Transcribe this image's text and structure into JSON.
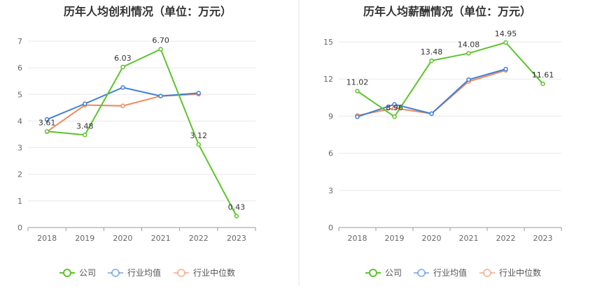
{
  "chart_data": [
    {
      "type": "line",
      "title": "历年人均创利情况（单位：万元）",
      "categories": [
        "2018",
        "2019",
        "2020",
        "2021",
        "2022",
        "2023"
      ],
      "ylim": [
        0,
        7
      ],
      "yticks": [
        0,
        1,
        2,
        3,
        4,
        5,
        6,
        7
      ],
      "grid": true,
      "legend": "bottom",
      "series": [
        {
          "name": "公司",
          "color": "#5cc42b",
          "values": [
            3.61,
            3.48,
            6.03,
            6.7,
            3.12,
            0.43
          ],
          "show_labels": true
        },
        {
          "name": "行业均值",
          "color": "#3f7fd6",
          "values": [
            4.06,
            4.65,
            5.26,
            4.94,
            5.05,
            null
          ],
          "show_labels": false
        },
        {
          "name": "行业中位数",
          "color": "#ef8a5b",
          "values": [
            3.6,
            4.6,
            4.57,
            4.94,
            5.01,
            null
          ],
          "show_labels": false
        }
      ]
    },
    {
      "type": "line",
      "title": "历年人均薪酬情况（单位：万元）",
      "categories": [
        "2018",
        "2019",
        "2020",
        "2021",
        "2022",
        "2023"
      ],
      "ylim": [
        0,
        15
      ],
      "yticks": [
        0,
        3,
        6,
        9,
        12,
        15
      ],
      "grid": true,
      "legend": "bottom",
      "series": [
        {
          "name": "公司",
          "color": "#5cc42b",
          "values": [
            11.02,
            8.96,
            13.48,
            14.08,
            14.95,
            11.61
          ],
          "show_labels": true
        },
        {
          "name": "行业均值",
          "color": "#3f7fd6",
          "values": [
            8.95,
            9.95,
            9.2,
            11.95,
            12.8,
            null
          ],
          "show_labels": false
        },
        {
          "name": "行业中位数",
          "color": "#ef8a5b",
          "values": [
            9.05,
            9.65,
            9.2,
            11.8,
            12.7,
            null
          ],
          "show_labels": false
        }
      ]
    }
  ]
}
